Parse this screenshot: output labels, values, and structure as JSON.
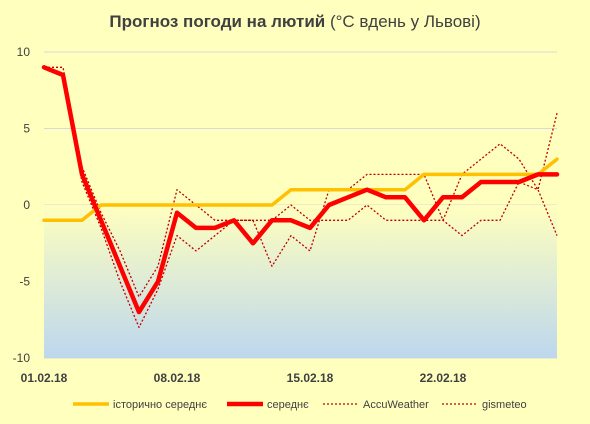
{
  "chart_data": {
    "type": "line",
    "title_bold": "Прогноз погоди на лютий",
    "title_regular": " (°С вдень у Львові)",
    "x_tick_labels": [
      "01.02.18",
      "08.02.18",
      "15.02.18",
      "22.02.18"
    ],
    "x_tick_days": [
      1,
      8,
      15,
      22
    ],
    "x_range": [
      1,
      28
    ],
    "ylim": [
      -10,
      10
    ],
    "y_ticks": [
      -10,
      -5,
      0,
      5,
      10
    ],
    "grid": "horizontal",
    "legend_position": "bottom",
    "days": [
      1,
      2,
      3,
      4,
      5,
      6,
      7,
      8,
      9,
      10,
      11,
      12,
      13,
      14,
      15,
      16,
      17,
      18,
      19,
      20,
      21,
      22,
      23,
      24,
      25,
      26,
      27,
      28
    ],
    "series": [
      {
        "name": "історично середнє",
        "color": "#FFC000",
        "style": "solid-thick",
        "values": [
          -1,
          -1,
          -1,
          0,
          0,
          0,
          0,
          0,
          0,
          0,
          0,
          0,
          0,
          1,
          1,
          1,
          1,
          1,
          1,
          1,
          2,
          2,
          2,
          2,
          2,
          2,
          2,
          3
        ]
      },
      {
        "name": "середнє",
        "color": "#FF0000",
        "style": "solid-thicker",
        "values": [
          9,
          8.5,
          2,
          -1,
          -4,
          -7,
          -5,
          -0.5,
          -1.5,
          -1.5,
          -1,
          -2.5,
          -1,
          -1,
          -1.5,
          0,
          0.5,
          1,
          0.5,
          0.5,
          -1,
          0.5,
          0.5,
          1.5,
          1.5,
          1.5,
          2,
          2
        ]
      },
      {
        "name": "AccuWeather",
        "color": "#C00000",
        "style": "dotted",
        "values": [
          9,
          8.5,
          1.5,
          -1.5,
          -5,
          -8,
          -5.5,
          -2,
          -3,
          -2,
          -1,
          -1,
          -1,
          0,
          -1,
          -1,
          -1,
          0,
          -1,
          -1,
          -1,
          -1,
          -2,
          -1,
          -1,
          1.5,
          1,
          -2
        ]
      },
      {
        "name": "gismeteo",
        "color": "#C00000",
        "style": "dotted",
        "values": [
          9,
          9,
          2.5,
          -0.5,
          -3,
          -6,
          -4,
          1,
          0,
          -1,
          -1,
          -1,
          -4,
          -2,
          -3,
          1,
          1,
          2,
          2,
          2,
          2,
          -1,
          2,
          3,
          4,
          3,
          1,
          6
        ]
      }
    ]
  }
}
